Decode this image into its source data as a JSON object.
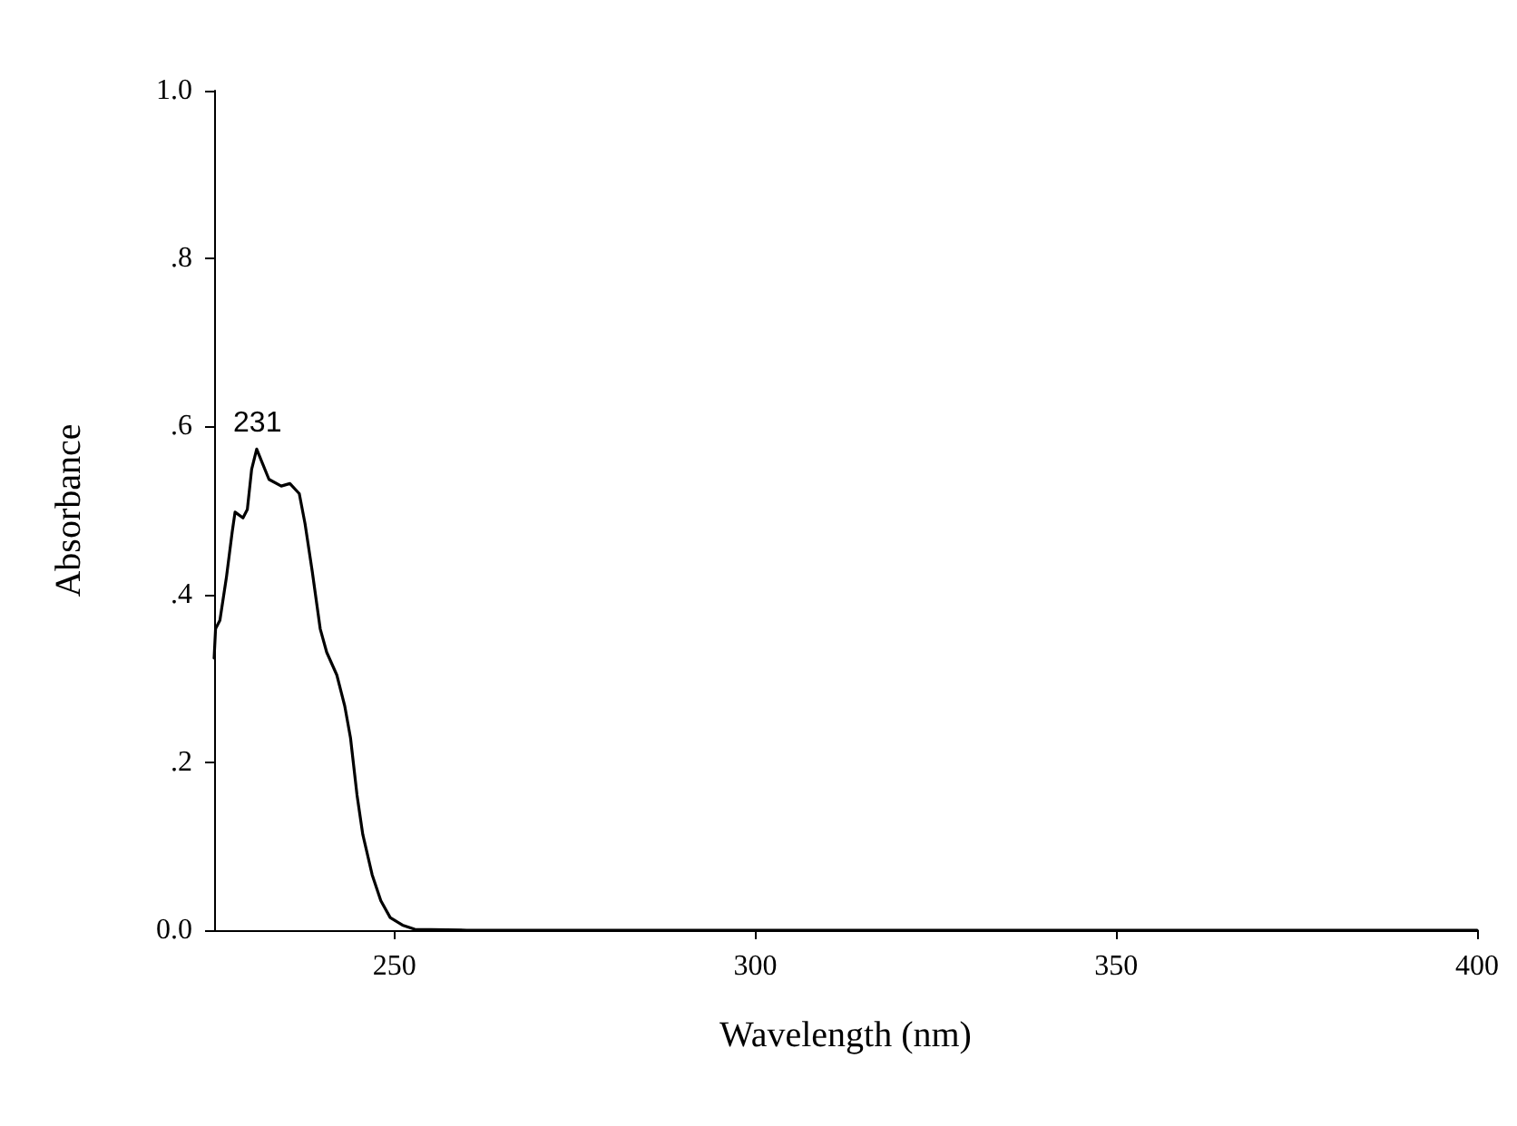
{
  "chart_data": {
    "type": "line",
    "xlabel": "Wavelength (nm)",
    "ylabel": "Absorbance",
    "x": [
      225,
      225.2,
      225.8,
      226.7,
      227.5,
      227.9,
      229.0,
      229.6,
      230.2,
      230.9,
      231.7,
      232.6,
      234.3,
      235.5,
      236.8,
      237.6,
      238.6,
      239.7,
      240.6,
      242.0,
      243.1,
      243.9,
      244.8,
      245.6,
      246.9,
      248.1,
      249.4,
      251.1,
      252.8,
      260,
      280,
      300,
      320,
      340,
      360,
      380,
      400
    ],
    "series": [
      {
        "color": "#000000",
        "values": [
          0.324,
          0.359,
          0.369,
          0.42,
          0.474,
          0.498,
          0.491,
          0.501,
          0.549,
          0.573,
          0.556,
          0.537,
          0.529,
          0.532,
          0.52,
          0.484,
          0.427,
          0.359,
          0.331,
          0.304,
          0.267,
          0.229,
          0.161,
          0.114,
          0.066,
          0.035,
          0.015,
          0.006,
          0.001,
          0,
          0,
          0,
          0,
          0,
          0,
          0,
          0
        ]
      }
    ],
    "annotations": [
      {
        "text": "231",
        "x": 231,
        "y": 0.573
      }
    ],
    "xlim": [
      225,
      400
    ],
    "xticks": [
      250,
      300,
      350,
      400
    ],
    "ylim": [
      0,
      1
    ],
    "yticks": [
      {
        "value": 0,
        "label": "0.0"
      },
      {
        "value": 0.2,
        "label": ".2"
      },
      {
        "value": 0.4,
        "label": ".4"
      },
      {
        "value": 0.6,
        "label": ".6"
      },
      {
        "value": 0.8,
        "label": ".8"
      },
      {
        "value": 1,
        "label": "1.0"
      }
    ],
    "marker": "none",
    "line_style": "solid"
  }
}
